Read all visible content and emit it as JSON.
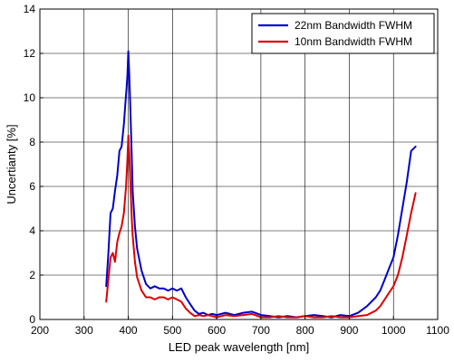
{
  "chart_data": {
    "type": "line",
    "title": "",
    "xlabel": "LED peak wavelength [nm]",
    "ylabel": "Uncertianty [%]",
    "xlim": [
      200,
      1100
    ],
    "ylim": [
      0,
      14
    ],
    "xticks": [
      200,
      300,
      400,
      500,
      600,
      700,
      800,
      900,
      1000,
      1100
    ],
    "yticks": [
      0,
      2,
      4,
      6,
      8,
      10,
      12,
      14
    ],
    "grid": true,
    "legend_position": "top-right",
    "series": [
      {
        "name": "22nm Bandwidth FWHM",
        "color": "#0000cc",
        "x": [
          350,
          355,
          360,
          365,
          370,
          375,
          380,
          385,
          390,
          393,
          396,
          398,
          400,
          402,
          404,
          406,
          408,
          410,
          415,
          420,
          430,
          440,
          450,
          460,
          470,
          480,
          490,
          500,
          510,
          520,
          530,
          540,
          550,
          560,
          570,
          580,
          590,
          600,
          620,
          640,
          660,
          680,
          700,
          720,
          740,
          760,
          780,
          800,
          820,
          840,
          860,
          880,
          900,
          920,
          940,
          960,
          970,
          980,
          990,
          1000,
          1010,
          1020,
          1030,
          1040,
          1050
        ],
        "y": [
          1.5,
          3.0,
          4.8,
          5.0,
          5.8,
          6.5,
          7.6,
          7.8,
          8.8,
          9.6,
          10.4,
          11.0,
          12.1,
          11.2,
          10.0,
          8.6,
          7.2,
          5.8,
          4.2,
          3.2,
          2.2,
          1.6,
          1.4,
          1.5,
          1.4,
          1.4,
          1.3,
          1.4,
          1.3,
          1.4,
          1.0,
          0.7,
          0.4,
          0.25,
          0.3,
          0.2,
          0.25,
          0.2,
          0.3,
          0.2,
          0.3,
          0.35,
          0.2,
          0.15,
          0.1,
          0.15,
          0.1,
          0.15,
          0.2,
          0.15,
          0.1,
          0.2,
          0.15,
          0.3,
          0.6,
          1.0,
          1.3,
          1.8,
          2.3,
          2.8,
          3.8,
          5.0,
          6.2,
          7.6,
          7.8
        ]
      },
      {
        "name": "10nm Bandwidth FWHM",
        "color": "#dd0000",
        "x": [
          350,
          355,
          360,
          365,
          370,
          375,
          380,
          385,
          390,
          395,
          398,
          400,
          402,
          404,
          406,
          408,
          410,
          415,
          420,
          430,
          440,
          450,
          460,
          470,
          480,
          490,
          500,
          510,
          520,
          530,
          540,
          550,
          560,
          570,
          580,
          590,
          600,
          620,
          640,
          660,
          680,
          700,
          720,
          740,
          760,
          780,
          800,
          820,
          840,
          860,
          880,
          900,
          920,
          940,
          960,
          970,
          980,
          990,
          1000,
          1010,
          1020,
          1030,
          1040,
          1050
        ],
        "y": [
          0.8,
          1.8,
          2.8,
          3.0,
          2.6,
          3.5,
          3.9,
          4.2,
          4.8,
          6.0,
          7.2,
          8.3,
          7.6,
          6.6,
          5.5,
          4.5,
          3.8,
          2.6,
          1.9,
          1.3,
          1.0,
          1.0,
          0.9,
          1.0,
          1.0,
          0.9,
          1.0,
          0.9,
          0.8,
          0.5,
          0.3,
          0.15,
          0.2,
          0.15,
          0.2,
          0.15,
          0.1,
          0.2,
          0.15,
          0.2,
          0.25,
          0.1,
          0.1,
          0.15,
          0.1,
          0.1,
          0.15,
          0.1,
          0.1,
          0.15,
          0.1,
          0.1,
          0.15,
          0.2,
          0.4,
          0.6,
          0.9,
          1.2,
          1.5,
          2.0,
          2.8,
          3.8,
          4.8,
          5.7
        ]
      }
    ]
  }
}
